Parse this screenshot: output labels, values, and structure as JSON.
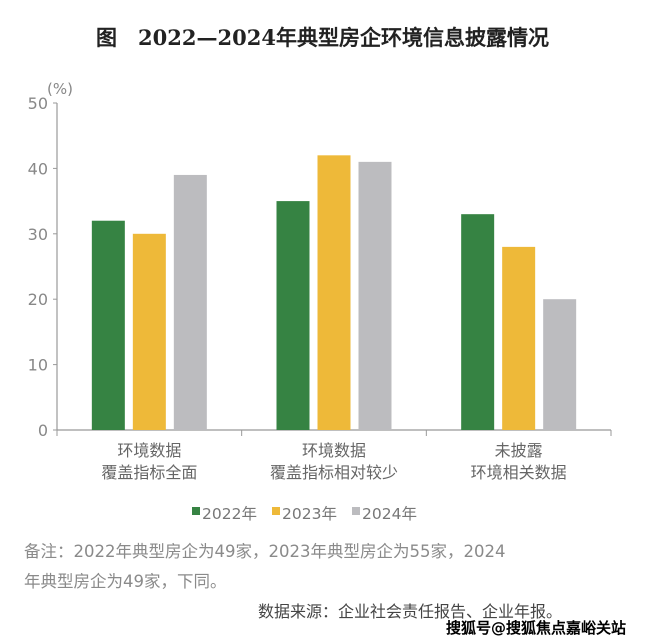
{
  "title": "图　2022—2024年典型房企环境信息披露情况",
  "chart_data": {
    "type": "bar",
    "title": "图　2022—2024年典型房企环境信息披露情况",
    "ylabel": "(%)",
    "xlabel": "",
    "ylim": [
      0,
      50
    ],
    "yticks": [
      0,
      10,
      20,
      30,
      40,
      50
    ],
    "grid": false,
    "legend_position": "bottom",
    "categories": [
      [
        "环境数据",
        "覆盖指标全面"
      ],
      [
        "环境数据",
        "覆盖指标相对较少"
      ],
      [
        "未披露",
        "环境相关数据"
      ]
    ],
    "series": [
      {
        "name": "2022年",
        "color": "#368343",
        "values": [
          32,
          35,
          33
        ]
      },
      {
        "name": "2023年",
        "color": "#eeb939",
        "values": [
          30,
          42,
          28
        ]
      },
      {
        "name": "2024年",
        "color": "#bcbcbf",
        "values": [
          39,
          41,
          20
        ]
      }
    ]
  },
  "note_lines": [
    "备注：2022年典型房企为49家，2023年典型房企为55家，2024",
    "年典型房企为49家，下同。"
  ],
  "source": "数据来源：企业社会责任报告、企业年报。",
  "watermark": "搜狐号@搜狐焦点嘉峪关站"
}
